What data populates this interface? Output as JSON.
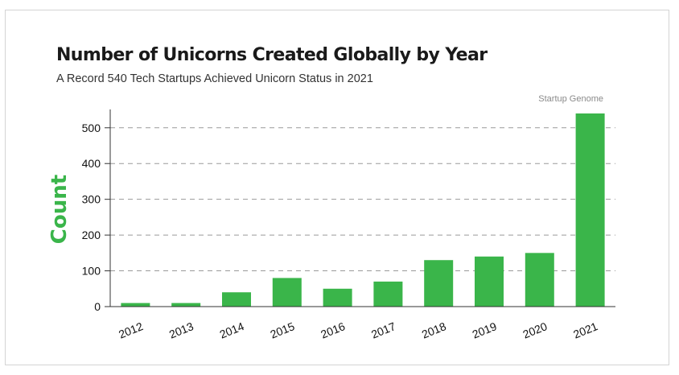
{
  "header": {
    "title": "Number of Unicorns Created Globally by Year",
    "subtitle": "A Record 540 Tech Startups Achieved Unicorn Status in 2021",
    "source": "Startup Genome"
  },
  "colors": {
    "bar": "#3ab54a",
    "ylabel": "#3ab54a",
    "grid": "#9a9a9a",
    "axis": "#333333"
  },
  "chart_data": {
    "type": "bar",
    "title": "Number of Unicorns Created Globally by Year",
    "subtitle": "A Record 540 Tech Startups Achieved Unicorn Status in 2021",
    "xlabel": "",
    "ylabel": "Count",
    "categories": [
      "2012",
      "2013",
      "2014",
      "2015",
      "2016",
      "2017",
      "2018",
      "2019",
      "2020",
      "2021"
    ],
    "values": [
      10,
      10,
      40,
      80,
      50,
      70,
      130,
      140,
      150,
      540
    ],
    "yticks": [
      0,
      100,
      200,
      300,
      400,
      500
    ],
    "ylim": [
      0,
      540
    ],
    "grid": true,
    "source": "Startup Genome"
  }
}
